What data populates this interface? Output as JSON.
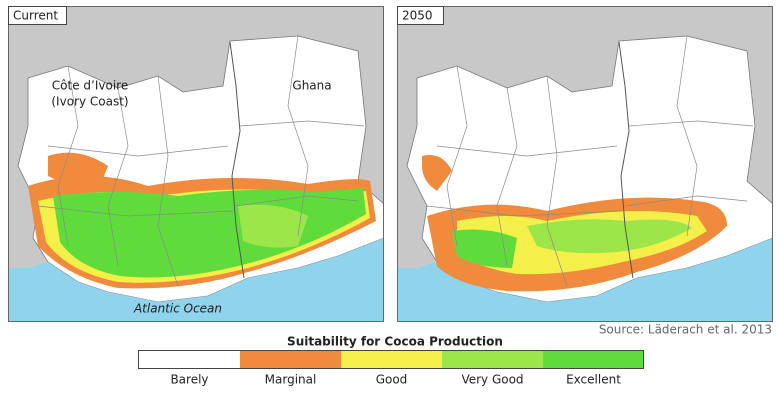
{
  "panels": [
    {
      "label": "Current"
    },
    {
      "label": "2050"
    }
  ],
  "map_labels": {
    "country_1": [
      "Côte d’Ivoire",
      "(Ivory Coast)"
    ],
    "country_2": "Ghana",
    "ocean": "Atlantic Ocean"
  },
  "source": "Source: Läderach et al. 2013",
  "legend": {
    "title": "Suitability for Cocoa Production",
    "items": [
      {
        "label": "Barely",
        "color": "#ffffff"
      },
      {
        "label": "Marginal",
        "color": "#f08a3c"
      },
      {
        "label": "Good",
        "color": "#f5ef4a"
      },
      {
        "label": "Very Good",
        "color": "#9de64a"
      },
      {
        "label": "Excellent",
        "color": "#5fdc3c"
      }
    ]
  }
}
